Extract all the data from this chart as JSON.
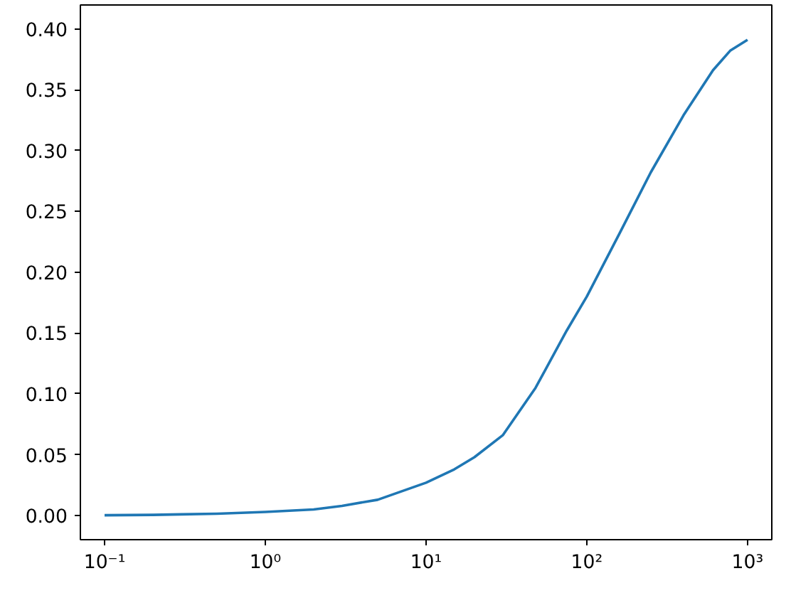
{
  "chart_data": {
    "type": "line",
    "log": "x",
    "x": [
      0.1,
      0.2,
      0.3,
      0.5,
      1,
      2,
      3,
      5,
      10,
      15,
      20,
      30,
      48,
      75,
      100,
      160,
      250,
      400,
      610,
      780,
      1000
    ],
    "series": [
      {
        "color": "#1f77b4",
        "values": [
          0.0003,
          0.0006,
          0.001,
          0.0015,
          0.003,
          0.005,
          0.008,
          0.013,
          0.027,
          0.038,
          0.048,
          0.066,
          0.105,
          0.152,
          0.18,
          0.232,
          0.282,
          0.329,
          0.366,
          0.382,
          0.391
        ]
      }
    ],
    "xlim": [
      0.0707,
      1416
    ],
    "ylim": [
      -0.0198,
      0.4196
    ],
    "xticks": [
      {
        "value": 0.1,
        "label": "10⁻¹"
      },
      {
        "value": 1,
        "label": "10⁰"
      },
      {
        "value": 10,
        "label": "10¹"
      },
      {
        "value": 100,
        "label": "10²"
      },
      {
        "value": 1000,
        "label": "10³"
      }
    ],
    "yticks": [
      {
        "value": 0,
        "label": "0.00"
      },
      {
        "value": 0.05,
        "label": "0.05"
      },
      {
        "value": 0.1,
        "label": "0.10"
      },
      {
        "value": 0.15,
        "label": "0.15"
      },
      {
        "value": 0.2,
        "label": "0.20"
      },
      {
        "value": 0.25,
        "label": "0.25"
      },
      {
        "value": 0.3,
        "label": "0.30"
      },
      {
        "value": 0.35,
        "label": "0.35"
      },
      {
        "value": 0.4,
        "label": "0.40"
      }
    ],
    "grid": false,
    "line_style": "solid"
  }
}
